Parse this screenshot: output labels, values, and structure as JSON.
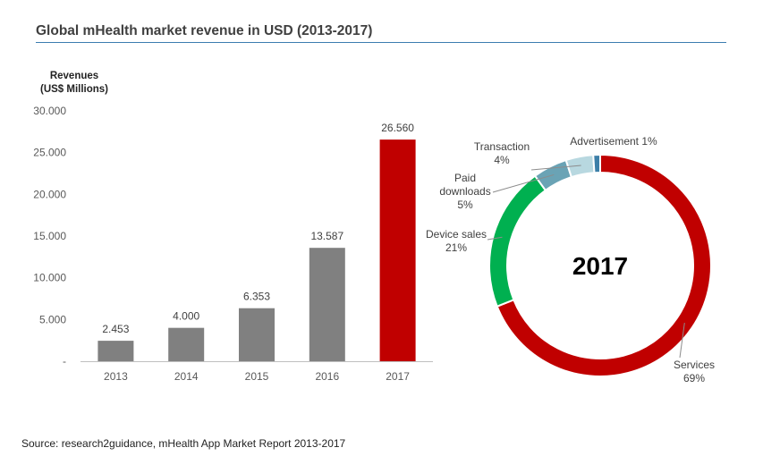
{
  "title": "Global mHealth market revenue in USD (2013-2017)",
  "source": "Source: research2guidance, mHealth App Market Report 2013-2017",
  "colors": {
    "bar": "#808080",
    "bar_highlight": "#c00000",
    "rule": "#3c7db0",
    "axis": "#bfbfbf"
  },
  "chart_data": [
    {
      "type": "bar",
      "ylabel": [
        "Revenues",
        "(US$ Millions)"
      ],
      "categories": [
        "2013",
        "2014",
        "2015",
        "2016",
        "2017"
      ],
      "values": [
        2453,
        4000,
        6353,
        13587,
        26560
      ],
      "data_labels": [
        "2.453",
        "4.000",
        "6.353",
        "13.587",
        "26.560"
      ],
      "ylim": [
        0,
        30000
      ],
      "yticks": [
        0,
        5000,
        10000,
        15000,
        20000,
        25000,
        30000
      ],
      "ytick_labels": [
        "-",
        "5.000",
        "10.000",
        "15.000",
        "20.000",
        "25.000",
        "30.000"
      ],
      "highlight_index": 4,
      "grid": false
    },
    {
      "type": "pie",
      "center_label": "2017",
      "slices": [
        {
          "label": "Services",
          "pct_label": "69%",
          "value": 69,
          "color": "#c00000"
        },
        {
          "label": "Device sales",
          "pct_label": "21%",
          "value": 21,
          "color": "#00b050"
        },
        {
          "label": "Paid downloads",
          "label_lines": [
            "Paid",
            "downloads"
          ],
          "pct_label": "5%",
          "value": 5,
          "color": "#6aa3b5"
        },
        {
          "label": "Transaction",
          "pct_label": "4%",
          "value": 4,
          "color": "#b8d8e0"
        },
        {
          "label": "Advertisement",
          "pct_label": "1%",
          "value": 1,
          "color": "#3d7fa8"
        }
      ]
    }
  ]
}
